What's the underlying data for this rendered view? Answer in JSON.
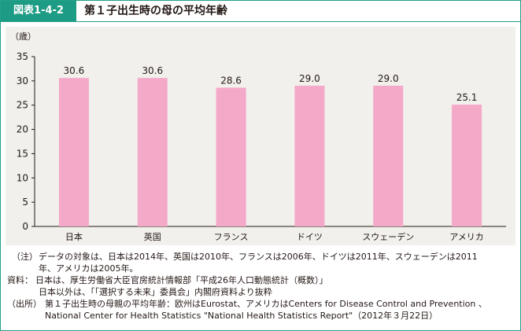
{
  "header": {
    "figure_label": "図表1-4-2",
    "title": "第１子出生時の母の平均年齢"
  },
  "colors": {
    "accent": "#1e9b84",
    "bar": "#f4a9c8",
    "plot_bg": "#f1f0ec",
    "axis": "#231815"
  },
  "chart_data": {
    "type": "bar",
    "title": "第１子出生時の母の平均年齢",
    "xlabel": "",
    "ylabel": "（歳）",
    "categories": [
      "日本",
      "英国",
      "フランス",
      "ドイツ",
      "スウェーデン",
      "アメリカ"
    ],
    "values": [
      30.6,
      30.6,
      28.6,
      29.0,
      29.0,
      25.1
    ],
    "value_labels": [
      "30.6",
      "30.6",
      "28.6",
      "29.0",
      "29.0",
      "25.1"
    ],
    "ylim": [
      0,
      35
    ],
    "yticks": [
      0,
      5,
      10,
      15,
      20,
      25,
      30,
      35
    ],
    "grid": false,
    "legend": "none"
  },
  "notes": [
    {
      "prefix": "（注）",
      "text": "データの対象は、日本は2014年、英国は2010年、フランスは2006年、ドイツは2011年、スウェーデンは2011"
    },
    {
      "prefix": "",
      "text": "年、アメリカは2005年。"
    },
    {
      "prefix": "資料：",
      "text": "日本は、厚生労働省大臣官房統計情報部「平成26年人口動態統計（概数）」"
    },
    {
      "prefix": "",
      "text": "日本以外は、「「選択する未来」委員会」内閣府資料より抜粋"
    },
    {
      "prefix": "（出所）",
      "text": "第１子出生時の母親の平均年齢：欧州はEurostat、アメリカはCenters for Disease Control and Prevention 、"
    },
    {
      "prefix": "",
      "text": "National Center for Health Statistics \"National Health Statistics Report\"（2012年３月22日）"
    }
  ]
}
